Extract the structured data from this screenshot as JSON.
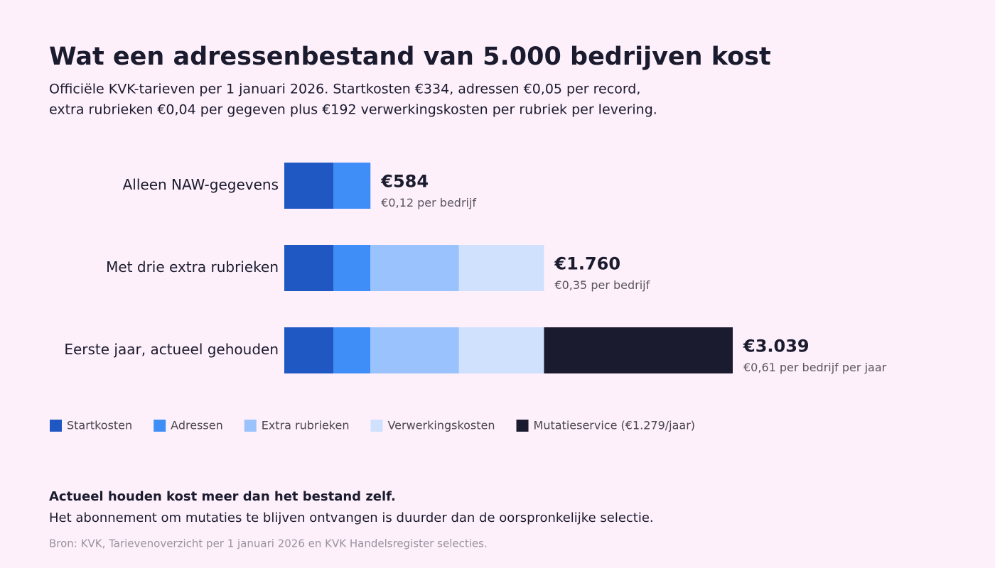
{
  "chart_data": {
    "type": "stacked-bar-horizontal",
    "title": "Wat een adressenbestand van 5.000 bedrijven kost",
    "subtitle": [
      "Officiële KVK-tarieven per 1 januari 2026. Startkosten €334, adressen €0,05 per record,",
      "extra rubrieken €0,04 per gegeven plus €192 verwerkingskosten per rubriek per levering."
    ],
    "categories": [
      "Alleen NAW-gegevens",
      "Met drie extra rubrieken",
      "Eerste jaar, actueel gehouden"
    ],
    "series": [
      {
        "name": "Startkosten",
        "color": "#1f57c3",
        "values": [
          334,
          334,
          334
        ]
      },
      {
        "name": "Adressen",
        "color": "#3f8ef8",
        "values": [
          250,
          250,
          250
        ]
      },
      {
        "name": "Extra rubrieken",
        "color": "#9ac3fd",
        "values": [
          null,
          600,
          600
        ]
      },
      {
        "name": "Verwerkingskosten",
        "color": "#cfe1fd",
        "values": [
          null,
          576,
          576
        ]
      },
      {
        "name": "Mutatieservice (€1.279/jaar)",
        "color": "#1b1b2f",
        "values": [
          null,
          null,
          1279
        ]
      }
    ],
    "totals": {
      "values": [
        584,
        1760,
        3039
      ],
      "value_labels": [
        "€584",
        "€1.760",
        "€3.039"
      ]
    },
    "per_company_labels": [
      "€0,12 per bedrijf",
      "€0,35 per bedrijf",
      "€0,61 per bedrijf per jaar"
    ],
    "note_title": "Actueel houden kost meer dan het bestand zelf.",
    "note_text": "Het abonnement om mutaties te blijven ontvangen is duurder dan de oorspronkelijke selectie.",
    "source": "Bron: KVK, Tarievenoverzicht per 1 januari 2026 en KVK Handelsregister selecties."
  }
}
